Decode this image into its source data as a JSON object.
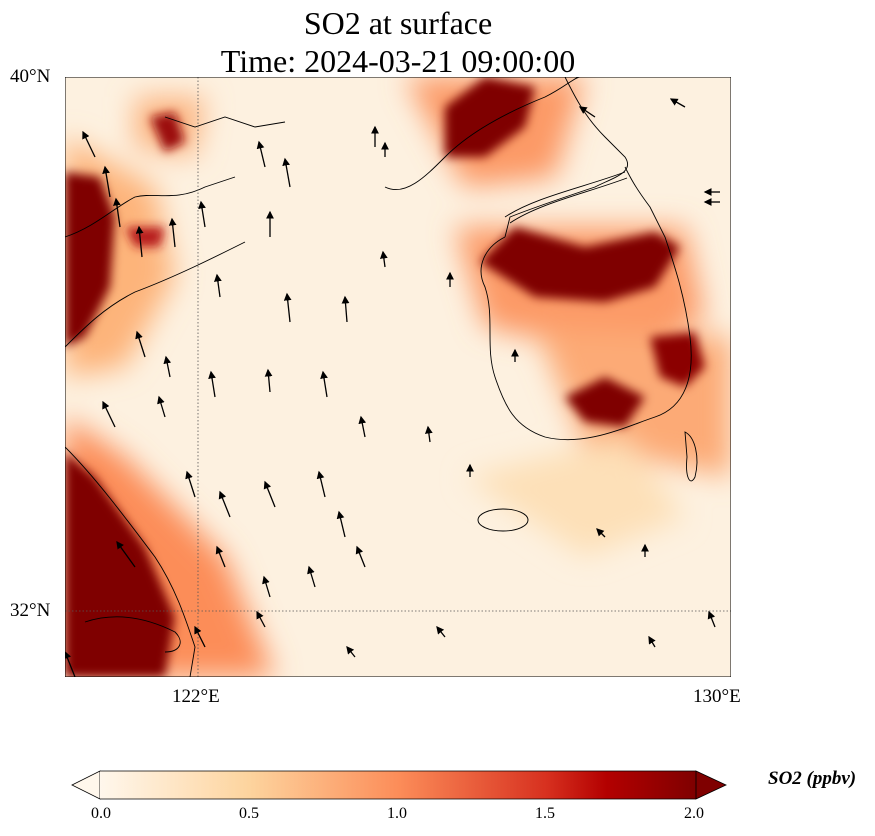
{
  "title": {
    "line1": "SO2 at surface",
    "line2": "Time: 2024-03-21 09:00:00"
  },
  "axes": {
    "lat_labels": [
      "40°N",
      "32°N"
    ],
    "lon_labels": [
      "122°E",
      "130°E"
    ],
    "lon_range": [
      120,
      130
    ],
    "lat_range": [
      31,
      40
    ]
  },
  "colorbar": {
    "label": "SO2 (ppbv)",
    "ticks": [
      "0.0",
      "0.5",
      "1.0",
      "1.5",
      "2.0"
    ],
    "range": [
      0,
      2
    ],
    "extend": "both",
    "colors": [
      "#fff7ec",
      "#fdd49e",
      "#fc8d59",
      "#d7301f",
      "#7f0000"
    ]
  }
}
